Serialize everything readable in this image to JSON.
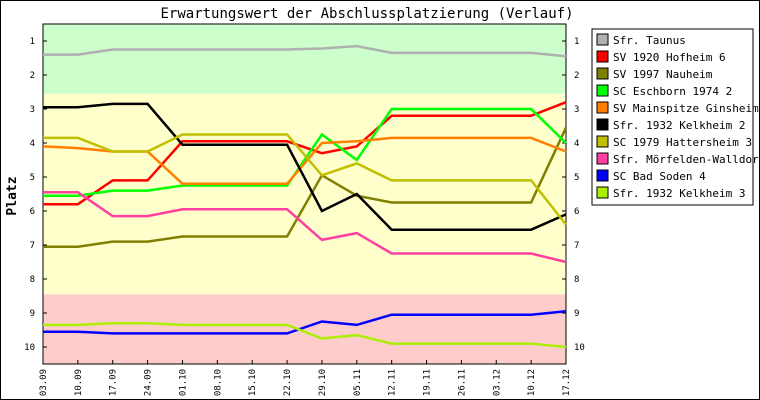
{
  "chart_data": {
    "type": "line",
    "title": "Erwartungswert der Abschlussplatzierung (Verlauf)",
    "ylabel": "Platz",
    "xlabel": "",
    "ylim": [
      0.5,
      10.5
    ],
    "y_inverted": true,
    "y_ticks": [
      "1",
      "2",
      "3",
      "4",
      "5",
      "6",
      "7",
      "8",
      "9",
      "10"
    ],
    "categories": [
      "03.09",
      "10.09",
      "17.09",
      "24.09",
      "01.10",
      "08.10",
      "15.10",
      "22.10",
      "29.10",
      "05.11",
      "12.11",
      "19.11",
      "26.11",
      "03.12",
      "10.12",
      "17.12"
    ],
    "zones": [
      {
        "from": 0.5,
        "to": 2.55,
        "color": "#ccffcc"
      },
      {
        "from": 2.55,
        "to": 8.45,
        "color": "#ffffcc"
      },
      {
        "from": 8.45,
        "to": 10.5,
        "color": "#ffcccc"
      }
    ],
    "legend_position": "right",
    "grid": false,
    "series": [
      {
        "name": "Sfr. Taunus",
        "color": "#b0b0b0",
        "values": [
          1.4,
          1.4,
          1.25,
          1.25,
          1.25,
          1.25,
          1.25,
          1.25,
          1.22,
          1.15,
          1.35,
          1.35,
          1.35,
          1.35,
          1.35,
          1.45
        ]
      },
      {
        "name": "SV 1920 Hofheim 6",
        "color": "#ff0000",
        "values": [
          5.8,
          5.8,
          5.1,
          5.1,
          3.95,
          3.95,
          3.95,
          3.95,
          4.3,
          4.1,
          3.2,
          3.2,
          3.2,
          3.2,
          3.2,
          2.8
        ]
      },
      {
        "name": "SV 1997 Nauheim",
        "color": "#808000",
        "values": [
          7.05,
          7.05,
          6.9,
          6.9,
          6.75,
          6.75,
          6.75,
          6.75,
          4.95,
          5.55,
          5.75,
          5.75,
          5.75,
          5.75,
          5.75,
          3.55
        ]
      },
      {
        "name": "SC Eschborn 1974 2",
        "color": "#00ff00",
        "values": [
          5.55,
          5.55,
          5.4,
          5.4,
          5.25,
          5.25,
          5.25,
          5.25,
          3.75,
          4.5,
          3.0,
          3.0,
          3.0,
          3.0,
          3.0,
          4.0
        ]
      },
      {
        "name": "SV Mainspitze Ginsheim",
        "color": "#ff8000",
        "values": [
          4.1,
          4.15,
          4.25,
          4.25,
          5.2,
          5.2,
          5.2,
          5.2,
          4.0,
          3.95,
          3.85,
          3.85,
          3.85,
          3.85,
          3.85,
          4.25
        ]
      },
      {
        "name": "Sfr. 1932 Kelkheim 2",
        "color": "#000000",
        "values": [
          2.95,
          2.95,
          2.85,
          2.85,
          4.05,
          4.05,
          4.05,
          4.05,
          6.0,
          5.5,
          6.55,
          6.55,
          6.55,
          6.55,
          6.55,
          6.1
        ]
      },
      {
        "name": "SC 1979 Hattersheim 3",
        "color": "#c0c000",
        "values": [
          3.85,
          3.85,
          4.25,
          4.25,
          3.75,
          3.75,
          3.75,
          3.75,
          4.95,
          4.6,
          5.1,
          5.1,
          5.1,
          5.1,
          5.1,
          6.4
        ]
      },
      {
        "name": "Sfr. Mörfelden-Walldorf",
        "color": "#ff40a0",
        "values": [
          5.45,
          5.45,
          6.15,
          6.15,
          5.95,
          5.95,
          5.95,
          5.95,
          6.85,
          6.65,
          7.25,
          7.25,
          7.25,
          7.25,
          7.25,
          7.5
        ]
      },
      {
        "name": "SC Bad Soden 4",
        "color": "#0000ff",
        "values": [
          9.55,
          9.55,
          9.6,
          9.6,
          9.6,
          9.6,
          9.6,
          9.6,
          9.25,
          9.35,
          9.05,
          9.05,
          9.05,
          9.05,
          9.05,
          8.95
        ]
      },
      {
        "name": "Sfr. 1932 Kelkheim 3",
        "color": "#aaee00",
        "values": [
          9.35,
          9.35,
          9.3,
          9.3,
          9.35,
          9.35,
          9.35,
          9.35,
          9.75,
          9.65,
          9.9,
          9.9,
          9.9,
          9.9,
          9.9,
          10.0
        ]
      }
    ]
  }
}
